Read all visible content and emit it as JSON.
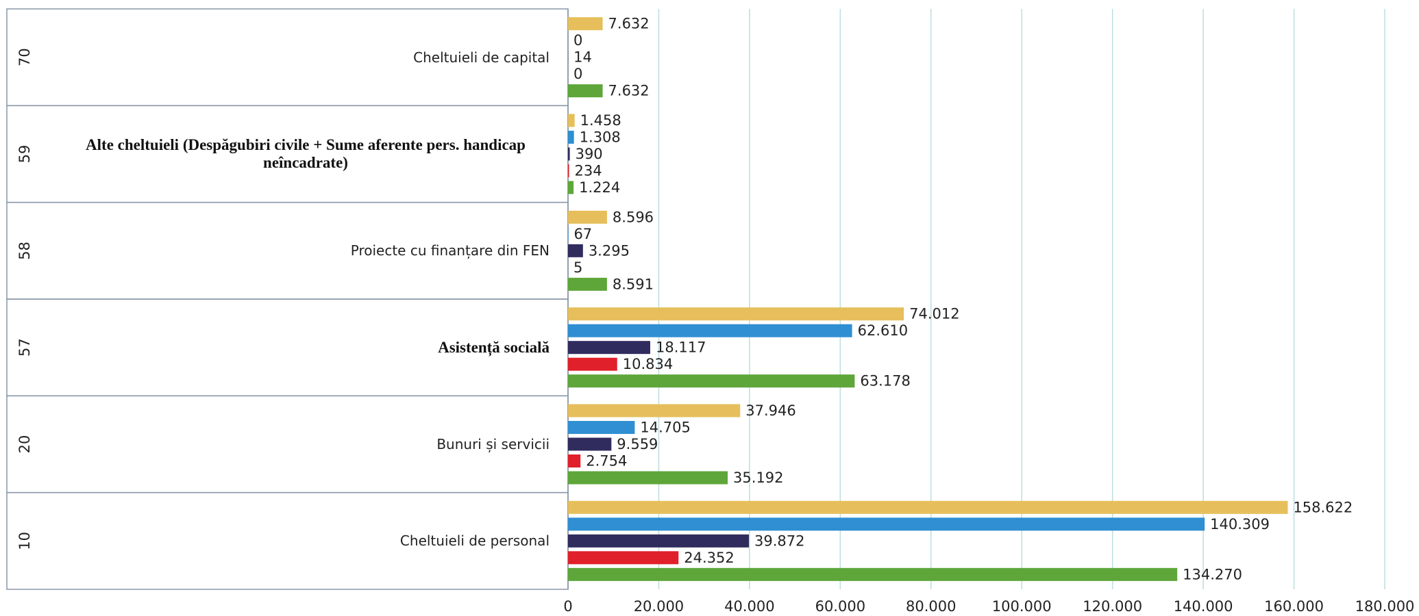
{
  "chart_data": {
    "type": "bar",
    "orientation": "horizontal",
    "codes": [
      "70",
      "59",
      "58",
      "57",
      "20",
      "10"
    ],
    "categories": [
      "Cheltuieli de capital",
      "Alte cheltuieli (Despăgubiri civile + Sume aferente pers. handicap neîncadrate)",
      "Proiecte cu finanțare din FEN",
      "Asistență socială",
      "Bunuri și servicii",
      "Cheltuieli de personal"
    ],
    "series": [
      {
        "color": "#e6bf5c",
        "values": [
          7632,
          1458,
          8596,
          74012,
          37946,
          158622
        ],
        "value_labels": [
          "7.632",
          "1.458",
          "8.596",
          "74.012",
          "37.946",
          "158.622"
        ]
      },
      {
        "color": "#2f8fd2",
        "values": [
          0,
          1308,
          67,
          62610,
          14705,
          140309
        ],
        "value_labels": [
          "0",
          "1.308",
          "67",
          "62.610",
          "14.705",
          "140.309"
        ]
      },
      {
        "color": "#302c5e",
        "values": [
          14,
          390,
          3295,
          18117,
          9559,
          39872
        ],
        "value_labels": [
          "14",
          "390",
          "3.295",
          "18.117",
          "9.559",
          "39.872"
        ]
      },
      {
        "color": "#e0202a",
        "values": [
          0,
          234,
          5,
          10834,
          2754,
          24352
        ],
        "value_labels": [
          "0",
          "234",
          "5",
          "10.834",
          "2.754",
          "24.352"
        ]
      },
      {
        "color": "#5ea63a",
        "values": [
          7632,
          1224,
          8591,
          63178,
          35192,
          134270
        ],
        "value_labels": [
          "7.632",
          "1.224",
          "8.591",
          "63.178",
          "35.192",
          "134.270"
        ]
      }
    ],
    "xlim": [
      0,
      180000
    ],
    "xticks": [
      0,
      {
        "value": 20000,
        "label": "20.000"
      },
      {
        "value": 40000,
        "label": "40.000"
      },
      {
        "value": 60000,
        "label": "60.000"
      },
      {
        "value": 80000,
        "label": "80.000"
      },
      {
        "value": 100000,
        "label": "100.000"
      },
      {
        "value": 120000,
        "label": "120.000"
      },
      {
        "value": 140000,
        "label": "140.000"
      },
      {
        "value": 160000,
        "label": "160.000"
      },
      {
        "value": 180000,
        "label": "180.000"
      }
    ],
    "grid": true
  }
}
